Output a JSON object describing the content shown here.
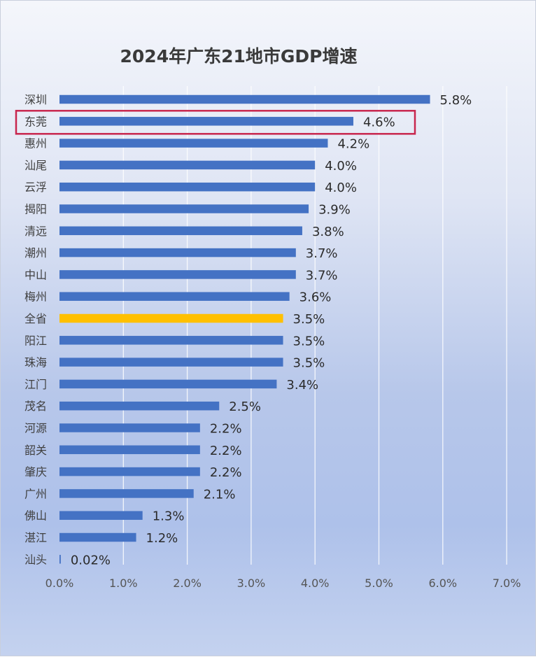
{
  "chart_data": {
    "type": "bar",
    "orientation": "horizontal",
    "title": "2024年广东21地市GDP增速",
    "categories": [
      "深圳",
      "东莞",
      "惠州",
      "汕尾",
      "云浮",
      "揭阳",
      "清远",
      "潮州",
      "中山",
      "梅州",
      "全省",
      "阳江",
      "珠海",
      "江门",
      "茂名",
      "河源",
      "韶关",
      "肇庆",
      "广州",
      "佛山",
      "湛江",
      "汕头"
    ],
    "values": [
      5.8,
      4.6,
      4.2,
      4.0,
      4.0,
      3.9,
      3.8,
      3.7,
      3.7,
      3.6,
      3.5,
      3.5,
      3.5,
      3.4,
      2.5,
      2.2,
      2.2,
      2.2,
      2.1,
      1.3,
      1.2,
      0.02
    ],
    "value_labels": [
      "5.8%",
      "4.6%",
      "4.2%",
      "4.0%",
      "4.0%",
      "3.9%",
      "3.8%",
      "3.7%",
      "3.7%",
      "3.6%",
      "3.5%",
      "3.5%",
      "3.5%",
      "3.4%",
      "2.5%",
      "2.2%",
      "2.2%",
      "2.2%",
      "2.1%",
      "1.3%",
      "1.2%",
      "0.02%"
    ],
    "xlim": [
      0,
      7
    ],
    "x_ticks": [
      0,
      1,
      2,
      3,
      4,
      5,
      6,
      7
    ],
    "x_tick_labels": [
      "0.0%",
      "1.0%",
      "2.0%",
      "3.0%",
      "4.0%",
      "5.0%",
      "6.0%",
      "7.0%"
    ],
    "grid": true,
    "legend": "none",
    "highlighted_category": "东莞",
    "emphasized_category": "全省"
  },
  "colors": {
    "bar": "#4472c4",
    "bar_emphasis": "#ffc000",
    "highlight_box": "#c8264e"
  }
}
